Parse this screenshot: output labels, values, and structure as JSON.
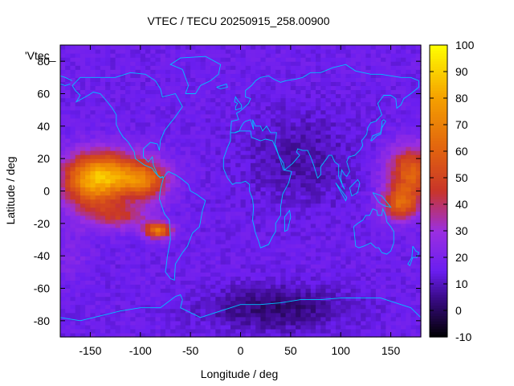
{
  "chart_data": {
    "type": "heatmap",
    "title": "VTEC / TECU 20250915_258.00900",
    "xlabel": "Longitude / deg",
    "ylabel": "Latitude / deg",
    "legend_label": "'Vtec_",
    "xlim": [
      -180,
      180
    ],
    "ylim": [
      -90,
      90
    ],
    "x_ticks": [
      -150,
      -100,
      -50,
      0,
      50,
      100,
      150
    ],
    "y_ticks": [
      -80,
      -60,
      -40,
      -20,
      0,
      20,
      40,
      60,
      80
    ],
    "colorbar_range": [
      -10,
      100
    ],
    "colorbar_ticks": [
      -10,
      0,
      10,
      20,
      30,
      40,
      50,
      60,
      70,
      80,
      90,
      100
    ],
    "palette": {
      "stops": [
        {
          "value": -10,
          "color": "#000000"
        },
        {
          "value": 5,
          "color": "#3b0b8a"
        },
        {
          "value": 15,
          "color": "#6a1ef0"
        },
        {
          "value": 30,
          "color": "#9b2fe0"
        },
        {
          "value": 45,
          "color": "#c8352a"
        },
        {
          "value": 60,
          "color": "#e06010"
        },
        {
          "value": 80,
          "color": "#f5a000"
        },
        {
          "value": 100,
          "color": "#ffff00"
        }
      ]
    },
    "coastline_color": "#00c0ff",
    "grid_resolution_deg": [
      5,
      2.5
    ],
    "field_description_values": {
      "background_vtec": 15,
      "peak_vtec": 85,
      "high_band_west_center": [
        -120,
        10
      ],
      "high_band_east_center": [
        165,
        5
      ],
      "southern_crest_center": [
        -80,
        -25
      ],
      "polar_low_center": [
        30,
        -75
      ]
    }
  }
}
